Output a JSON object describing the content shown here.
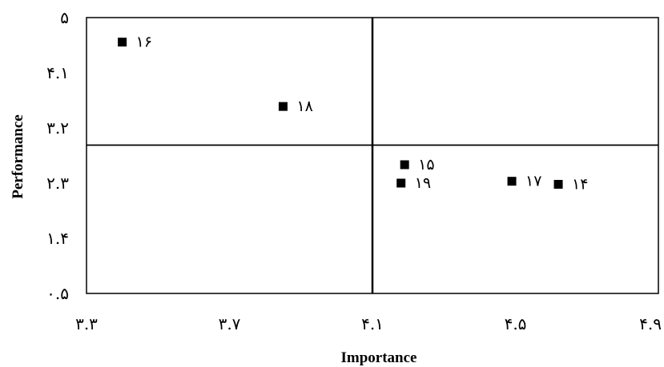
{
  "chart_data": {
    "type": "scatter",
    "title": "",
    "xlabel": "Importance",
    "ylabel": "Performance",
    "xlim": [
      3.3,
      4.9
    ],
    "ylim": [
      0.5,
      5
    ],
    "x_ticks": [
      {
        "value": 3.3,
        "label": "۳.۳"
      },
      {
        "value": 3.7,
        "label": "۳.۷"
      },
      {
        "value": 4.1,
        "label": "۴.۱"
      },
      {
        "value": 4.5,
        "label": "۴.۵"
      },
      {
        "value": 4.9,
        "label": "۴.۹"
      }
    ],
    "y_ticks": [
      {
        "value": 0.5,
        "label": "۰.۵"
      },
      {
        "value": 1.4,
        "label": "۱.۴"
      },
      {
        "value": 2.3,
        "label": "۲.۳"
      },
      {
        "value": 3.2,
        "label": "۳.۲"
      },
      {
        "value": 4.1,
        "label": "۴.۱"
      },
      {
        "value": 5,
        "label": "۵"
      }
    ],
    "quadrant_lines": {
      "x": 4.1,
      "y": 2.92
    },
    "marker_color": "#000000",
    "points": [
      {
        "label": "۱۶",
        "x": 3.4,
        "y": 4.6
      },
      {
        "label": "۱۸",
        "x": 3.85,
        "y": 3.55
      },
      {
        "label": "۱۵",
        "x": 4.19,
        "y": 2.6
      },
      {
        "label": "۱۹",
        "x": 4.18,
        "y": 2.3
      },
      {
        "label": "۱۷",
        "x": 4.49,
        "y": 2.33
      },
      {
        "label": "۱۴",
        "x": 4.62,
        "y": 2.28
      }
    ],
    "grid": false,
    "legend": "none"
  }
}
